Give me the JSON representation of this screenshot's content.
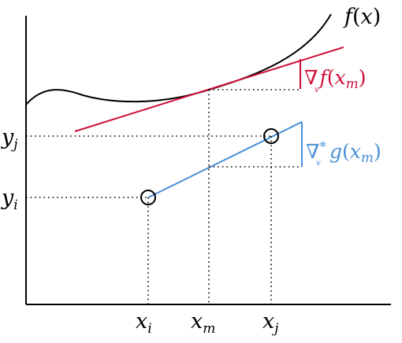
{
  "labels": {
    "curve": "f(x)",
    "red_gradient": "∇f(x_m)",
    "blue_gradient": "∇*g(x_m)",
    "x_i": "x_i",
    "x_m": "x_m",
    "x_j": "x_j",
    "y_i": "y_i",
    "y_j": "y_j"
  },
  "text": {
    "f": "f",
    "x": "x",
    "y": "y",
    "open_paren": "(",
    "close_paren": ")",
    "nabla": "∇",
    "star": "*",
    "v": "v",
    "g": "g",
    "sub_i": "i",
    "sub_j": "j",
    "sub_m": "m"
  },
  "colors": {
    "axis": "#000000",
    "curve": "#000000",
    "red": "#d0103a",
    "blue": "#4a90d9"
  }
}
